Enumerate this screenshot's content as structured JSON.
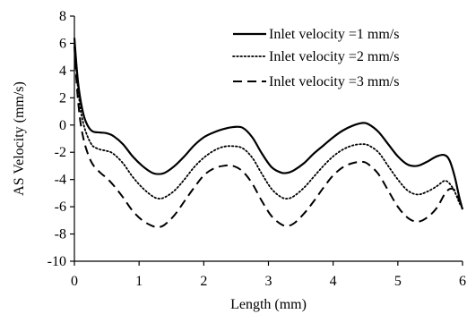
{
  "chart_data": {
    "type": "line",
    "title": "",
    "xlabel": "Length (mm)",
    "ylabel": "AS Velocity (mm/s)",
    "xlim": [
      0,
      6
    ],
    "ylim": [
      -10,
      8
    ],
    "xticks": [
      0,
      1,
      2,
      3,
      4,
      5,
      6
    ],
    "yticks": [
      8,
      6,
      4,
      2,
      0,
      -2,
      -4,
      -6,
      -8,
      -10
    ],
    "grid": false,
    "legend_position": "top-right",
    "series": [
      {
        "name": "Inlet velocity =1 mm/s",
        "style": "solid",
        "color": "#000000",
        "x": [
          0,
          0.03,
          0.06,
          0.1,
          0.15,
          0.2,
          0.25,
          0.3,
          0.4,
          0.5,
          0.6,
          0.75,
          0.9,
          1.05,
          1.2,
          1.3,
          1.4,
          1.55,
          1.7,
          1.85,
          2.0,
          2.15,
          2.3,
          2.45,
          2.6,
          2.75,
          2.9,
          3.05,
          3.2,
          3.3,
          3.4,
          3.55,
          3.7,
          3.85,
          4.0,
          4.15,
          4.3,
          4.45,
          4.55,
          4.7,
          4.85,
          5.0,
          5.15,
          5.3,
          5.45,
          5.6,
          5.72,
          5.8,
          5.88,
          5.95,
          6.0
        ],
        "values": [
          6.4,
          4.5,
          3.0,
          1.7,
          0.6,
          0.0,
          -0.35,
          -0.5,
          -0.55,
          -0.6,
          -0.8,
          -1.4,
          -2.3,
          -3.0,
          -3.5,
          -3.6,
          -3.5,
          -3.0,
          -2.3,
          -1.5,
          -0.9,
          -0.55,
          -0.3,
          -0.15,
          -0.2,
          -0.9,
          -2.1,
          -3.1,
          -3.5,
          -3.5,
          -3.3,
          -2.8,
          -2.1,
          -1.5,
          -0.9,
          -0.4,
          -0.05,
          0.15,
          0.05,
          -0.5,
          -1.4,
          -2.3,
          -2.9,
          -3.0,
          -2.7,
          -2.3,
          -2.2,
          -2.6,
          -3.8,
          -5.3,
          -6.2
        ]
      },
      {
        "name": "Inlet velocity =2 mm/s",
        "style": "dotted",
        "color": "#000000",
        "x": [
          0,
          0.03,
          0.06,
          0.1,
          0.15,
          0.2,
          0.25,
          0.3,
          0.4,
          0.5,
          0.6,
          0.75,
          0.9,
          1.05,
          1.2,
          1.3,
          1.4,
          1.55,
          1.7,
          1.85,
          2.0,
          2.15,
          2.3,
          2.45,
          2.6,
          2.75,
          2.9,
          3.05,
          3.2,
          3.3,
          3.4,
          3.55,
          3.7,
          3.85,
          4.0,
          4.15,
          4.3,
          4.45,
          4.55,
          4.7,
          4.85,
          5.0,
          5.15,
          5.3,
          5.45,
          5.6,
          5.72,
          5.8,
          5.88,
          5.95,
          6.0
        ],
        "values": [
          6.0,
          4.0,
          2.5,
          1.0,
          -0.1,
          -0.8,
          -1.3,
          -1.6,
          -1.8,
          -1.9,
          -2.1,
          -2.8,
          -3.8,
          -4.6,
          -5.2,
          -5.4,
          -5.3,
          -4.8,
          -4.0,
          -3.1,
          -2.4,
          -1.9,
          -1.6,
          -1.55,
          -1.7,
          -2.4,
          -3.6,
          -4.7,
          -5.3,
          -5.4,
          -5.2,
          -4.6,
          -3.8,
          -3.0,
          -2.3,
          -1.8,
          -1.5,
          -1.4,
          -1.5,
          -2.0,
          -3.0,
          -4.0,
          -4.8,
          -5.1,
          -4.9,
          -4.5,
          -4.1,
          -4.3,
          -4.9,
          -5.7,
          -6.1
        ]
      },
      {
        "name": "Inlet velocity =3 mm/s",
        "style": "dashed",
        "color": "#000000",
        "x": [
          0,
          0.03,
          0.06,
          0.1,
          0.15,
          0.2,
          0.25,
          0.3,
          0.4,
          0.5,
          0.6,
          0.75,
          0.9,
          1.05,
          1.2,
          1.3,
          1.4,
          1.55,
          1.7,
          1.85,
          2.0,
          2.15,
          2.3,
          2.45,
          2.6,
          2.75,
          2.9,
          3.05,
          3.2,
          3.3,
          3.4,
          3.55,
          3.7,
          3.85,
          4.0,
          4.15,
          4.3,
          4.45,
          4.55,
          4.7,
          4.85,
          5.0,
          5.15,
          5.3,
          5.45,
          5.6,
          5.72,
          5.8,
          5.88,
          5.95,
          6.0
        ],
        "values": [
          5.8,
          3.4,
          1.6,
          0.0,
          -1.2,
          -2.0,
          -2.6,
          -3.0,
          -3.5,
          -3.9,
          -4.4,
          -5.3,
          -6.3,
          -7.0,
          -7.4,
          -7.5,
          -7.3,
          -6.6,
          -5.6,
          -4.6,
          -3.7,
          -3.2,
          -3.0,
          -3.0,
          -3.4,
          -4.3,
          -5.6,
          -6.7,
          -7.3,
          -7.4,
          -7.2,
          -6.5,
          -5.6,
          -4.6,
          -3.7,
          -3.1,
          -2.8,
          -2.7,
          -2.9,
          -3.6,
          -4.8,
          -6.0,
          -6.8,
          -7.1,
          -6.8,
          -6.1,
          -5.1,
          -4.7,
          -4.8,
          -5.5,
          -6.0
        ]
      }
    ]
  }
}
